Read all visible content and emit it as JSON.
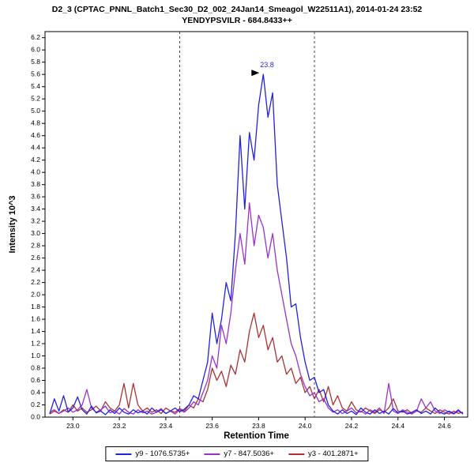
{
  "chart_data": {
    "type": "line",
    "title": "D2_3 (CPTAC_PNNL_Batch1_Sec30_D2_002_24Jan14_Smeagol_W22511A1), 2014-01-24 23:52",
    "subtitle": "YENDYPSVILR - 684.8433++",
    "xlabel": "Retention Time",
    "ylabel": "Intensity 10^3",
    "xlim": [
      22.88,
      24.7
    ],
    "ylim": [
      0,
      6.3
    ],
    "x_ticks": [
      23.0,
      23.2,
      23.4,
      23.6,
      23.8,
      24.0,
      24.2,
      24.4,
      24.6
    ],
    "y_tick_step": 0.2,
    "y_tick_max": 6.2,
    "grid": false,
    "legend_position": "bottom",
    "peak_boundaries": [
      23.46,
      24.04
    ],
    "annotation": {
      "text": "23.8",
      "x": 23.82,
      "y": 5.6,
      "color": "#2222DD"
    },
    "x_start": 22.9,
    "x_step": 0.02,
    "series": [
      {
        "id": "y9",
        "name": "y9 - 1076.5735+",
        "color": "#2222DD",
        "values": [
          0.05,
          0.3,
          0.1,
          0.35,
          0.08,
          0.15,
          0.33,
          0.12,
          0.05,
          0.18,
          0.07,
          0.1,
          0.04,
          0.12,
          0.06,
          0.15,
          0.08,
          0.05,
          0.12,
          0.07,
          0.1,
          0.05,
          0.15,
          0.08,
          0.12,
          0.06,
          0.1,
          0.15,
          0.09,
          0.13,
          0.2,
          0.35,
          0.3,
          0.6,
          0.9,
          1.7,
          1.2,
          1.6,
          2.2,
          1.9,
          3.0,
          4.6,
          3.4,
          4.65,
          4.2,
          5.1,
          5.6,
          4.9,
          5.3,
          3.8,
          3.2,
          2.6,
          1.8,
          1.85,
          1.3,
          0.9,
          0.6,
          0.65,
          0.4,
          0.45,
          0.2,
          0.1,
          0.05,
          0.12,
          0.06,
          0.1,
          0.04,
          0.15,
          0.08,
          0.05,
          0.12,
          0.06,
          0.1,
          0.05,
          0.14,
          0.07,
          0.1,
          0.05,
          0.08,
          0.12,
          0.06,
          0.1,
          0.05,
          0.15,
          0.08,
          0.05,
          0.1,
          0.06,
          0.12,
          0.05
        ]
      },
      {
        "id": "y7",
        "name": "y7 - 847.5036+",
        "color": "#9933CC",
        "values": [
          0.08,
          0.12,
          0.06,
          0.1,
          0.15,
          0.08,
          0.12,
          0.2,
          0.45,
          0.15,
          0.08,
          0.12,
          0.18,
          0.07,
          0.1,
          0.05,
          0.14,
          0.08,
          0.05,
          0.12,
          0.07,
          0.1,
          0.05,
          0.08,
          0.14,
          0.06,
          0.1,
          0.05,
          0.12,
          0.08,
          0.15,
          0.25,
          0.2,
          0.4,
          0.6,
          1.0,
          0.8,
          1.5,
          1.2,
          1.7,
          2.4,
          3.0,
          2.5,
          3.5,
          2.8,
          3.3,
          3.1,
          2.6,
          3.0,
          2.4,
          2.0,
          1.6,
          1.2,
          1.0,
          0.7,
          0.5,
          0.35,
          0.4,
          0.25,
          0.3,
          0.15,
          0.08,
          0.12,
          0.06,
          0.1,
          0.15,
          0.07,
          0.1,
          0.05,
          0.12,
          0.08,
          0.15,
          0.06,
          0.55,
          0.1,
          0.06,
          0.12,
          0.08,
          0.05,
          0.1,
          0.3,
          0.15,
          0.25,
          0.1,
          0.06,
          0.12,
          0.08,
          0.05,
          0.1,
          0.06
        ]
      },
      {
        "id": "y3",
        "name": "y3 - 401.2871+",
        "color": "#AA3333",
        "values": [
          0.05,
          0.1,
          0.06,
          0.12,
          0.08,
          0.2,
          0.1,
          0.15,
          0.08,
          0.12,
          0.18,
          0.1,
          0.25,
          0.15,
          0.1,
          0.2,
          0.55,
          0.15,
          0.55,
          0.2,
          0.1,
          0.15,
          0.08,
          0.12,
          0.06,
          0.15,
          0.1,
          0.08,
          0.14,
          0.1,
          0.2,
          0.15,
          0.3,
          0.25,
          0.45,
          0.8,
          0.6,
          0.75,
          0.5,
          0.85,
          0.7,
          1.1,
          0.9,
          1.4,
          1.7,
          1.3,
          1.5,
          1.1,
          1.3,
          0.9,
          1.0,
          0.7,
          0.8,
          0.55,
          0.65,
          0.4,
          0.5,
          0.3,
          0.45,
          0.25,
          0.5,
          0.2,
          0.35,
          0.15,
          0.1,
          0.25,
          0.12,
          0.08,
          0.15,
          0.1,
          0.06,
          0.12,
          0.08,
          0.15,
          0.3,
          0.1,
          0.08,
          0.12,
          0.06,
          0.1,
          0.08,
          0.15,
          0.1,
          0.06,
          0.12,
          0.08,
          0.05,
          0.1,
          0.06,
          0.08
        ]
      }
    ]
  }
}
